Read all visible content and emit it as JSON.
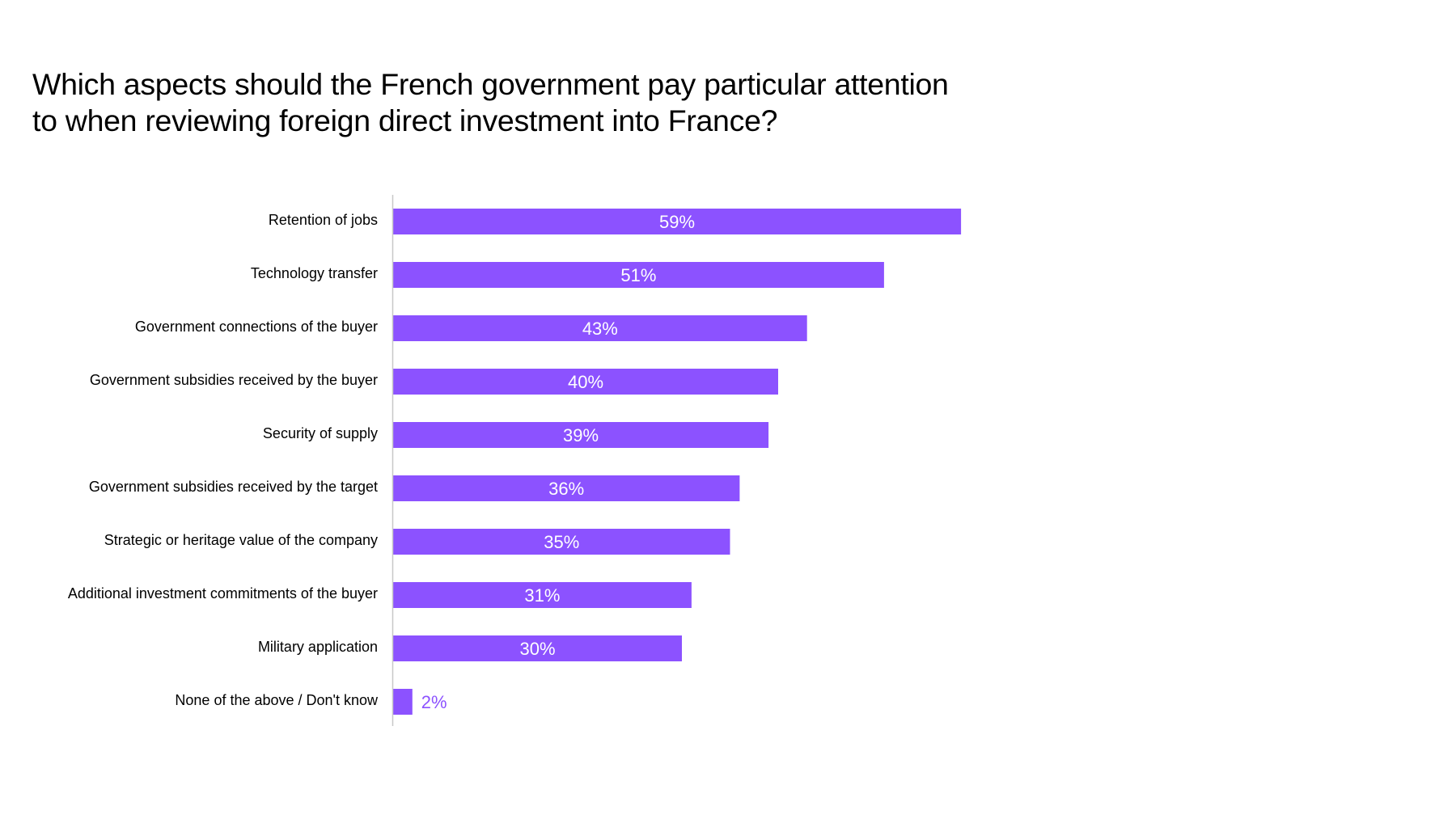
{
  "chart_data": {
    "type": "bar",
    "orientation": "horizontal",
    "title": "Which aspects should the French government pay particular attention to when reviewing foreign direct investment into France?",
    "title_lines": [
      "Which aspects should the French government pay particular attention",
      "to when reviewing foreign direct investment into France?"
    ],
    "xlabel": "",
    "ylabel": "",
    "unit": "%",
    "xlim": [
      0,
      100
    ],
    "grid": false,
    "legend": "none",
    "bar_color": "#8c52ff",
    "inside_label_color": "#ffffff",
    "axis_color": "#c8c8c8",
    "categories": [
      "Retention of jobs",
      "Technology transfer",
      "Government connections of the buyer",
      "Government subsidies received by the buyer",
      "Security of supply",
      "Government subsidies received by the target",
      "Strategic or heritage value of the company",
      "Additional investment commitments of the buyer",
      "Military application",
      "None of the above / Don't know"
    ],
    "values": [
      59,
      51,
      43,
      40,
      39,
      36,
      35,
      31,
      30,
      2
    ],
    "data_labels": [
      "59%",
      "51%",
      "43%",
      "40%",
      "39%",
      "36%",
      "35%",
      "31%",
      "30%",
      "2%"
    ]
  }
}
